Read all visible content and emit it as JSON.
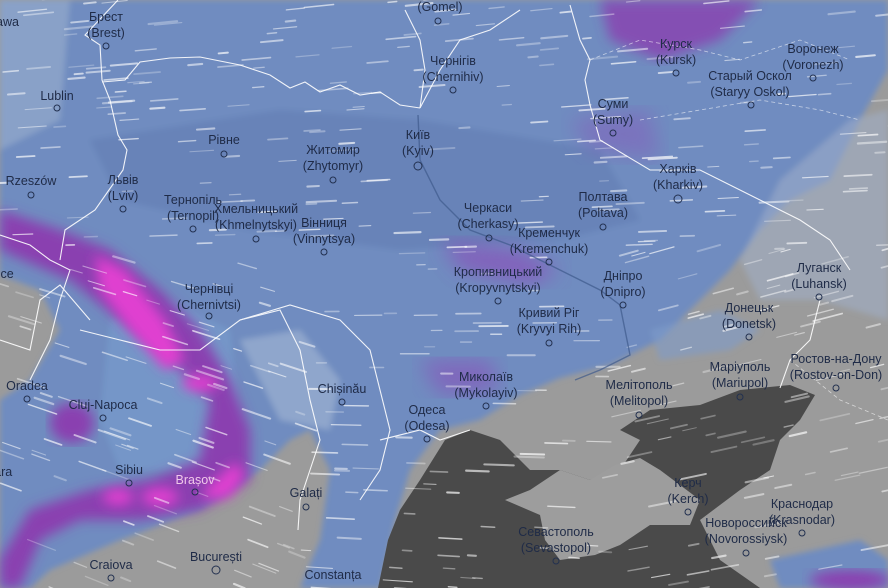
{
  "map": {
    "layer": "precipitation-and-wind",
    "colors": {
      "precip_light": "#6f8cc0",
      "precip_heavy": "#8a3fb0",
      "precip_extreme": "#e040d0",
      "land_dry": "#9b9b9b",
      "sea": "#4a4a4a",
      "borders": "#ffffff",
      "label_text": "#1f2b47"
    }
  },
  "cities": [
    {
      "name": "Warszawa"
    },
    {
      "name": "Брест",
      "latin": "(Brest)"
    },
    {
      "name": "Lublin"
    },
    {
      "name": "Rzeszów"
    },
    {
      "name": "Львів",
      "latin": "(Lviv)"
    },
    {
      "name": "Рівне"
    },
    {
      "name": "Тернопіль",
      "latin": "(Ternopil)"
    },
    {
      "name": "Хмельницький",
      "latin": "(Khmelnytskyi)"
    },
    {
      "name": "Вінниця",
      "latin": "(Vinnytsya)"
    },
    {
      "name": "Житомир",
      "latin": "(Zhytomyr)"
    },
    {
      "name": "Київ",
      "latin": "(Kyiv)"
    },
    {
      "name": "Чернігів",
      "latin": "(Chernihiv)"
    },
    {
      "latin": "(Gomel)"
    },
    {
      "name": "Курск",
      "latin": "(Kursk)"
    },
    {
      "name": "Воронеж",
      "latin": "(Voronezh)"
    },
    {
      "name": "Старый Оскол",
      "latin": "(Staryy Oskol)"
    },
    {
      "name": "Суми",
      "latin": "(Sumy)"
    },
    {
      "name": "Харків",
      "latin": "(Kharkiv)"
    },
    {
      "name": "Полтава",
      "latin": "(Poltava)"
    },
    {
      "name": "Черкаси",
      "latin": "(Cherkasy)"
    },
    {
      "name": "Кременчук",
      "latin": "(Kremenchuk)"
    },
    {
      "name": "Кропивницький",
      "latin": "(Kropyvnytskyi)"
    },
    {
      "name": "Дніпро",
      "latin": "(Dnipro)"
    },
    {
      "name": "Луганск",
      "latin": "(Luhansk)"
    },
    {
      "name": "Донецьк",
      "latin": "(Donetsk)"
    },
    {
      "name": "Кривий Ріг",
      "latin": "(Kryvyi Rih)"
    },
    {
      "name": "Чернівці",
      "latin": "(Chernivtsi)"
    },
    {
      "name": "Oradea"
    },
    {
      "name": "Cluj-Napoca"
    },
    {
      "name": "Chișinău"
    },
    {
      "name": "Миколаїв",
      "latin": "(Mykolayiv)"
    },
    {
      "name": "Одеса",
      "latin": "(Odesa)"
    },
    {
      "name": "Мелітополь",
      "latin": "(Melitopol)"
    },
    {
      "name": "Маріуполь",
      "latin": "(Mariupol)"
    },
    {
      "name": "Ростов-на-Дону",
      "latin": "(Rostov-on-Don)"
    },
    {
      "name": "Sibiu"
    },
    {
      "name": "Brașov"
    },
    {
      "name": "Timișoara"
    },
    {
      "name": "Galați"
    },
    {
      "name": "Керч",
      "latin": "(Kerch)"
    },
    {
      "name": "Новороссийск",
      "latin": "(Novorossiysk)"
    },
    {
      "name": "Краснодар",
      "latin": "(Krasnodar)"
    },
    {
      "name": "Севастополь",
      "latin": "(Sevastopol)"
    },
    {
      "name": "București"
    },
    {
      "name": "Craiova"
    },
    {
      "name": "Constanța"
    },
    {
      "name": "Košice"
    }
  ]
}
